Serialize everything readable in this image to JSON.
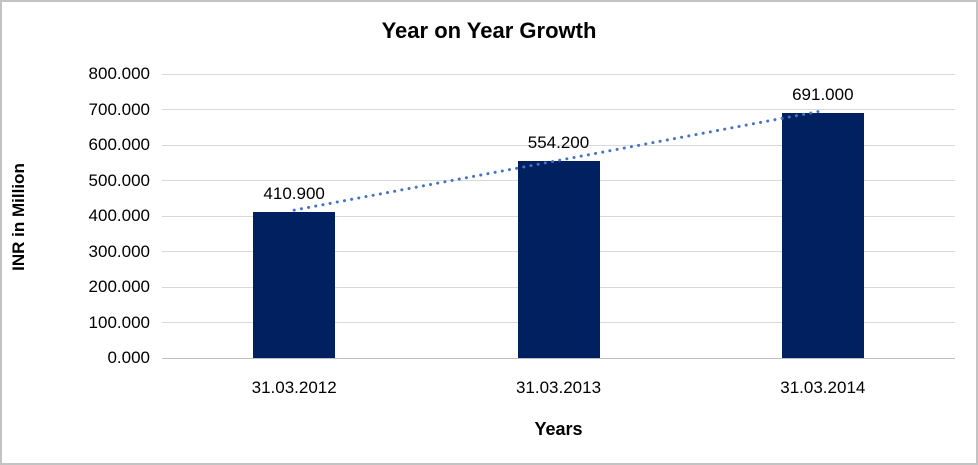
{
  "chart_data": {
    "type": "bar",
    "title": "Year on Year Growth",
    "xlabel": "Years",
    "ylabel": "INR in Million",
    "categories": [
      "31.03.2012",
      "31.03.2013",
      "31.03.2014"
    ],
    "values": [
      410.9,
      554.2,
      691.0
    ],
    "value_labels": [
      "410.900",
      "554.200",
      "691.000"
    ],
    "ylim": [
      0,
      800
    ],
    "ytick_step": 100,
    "ytick_labels": [
      "0.000",
      "100.000",
      "200.000",
      "300.000",
      "400.000",
      "500.000",
      "600.000",
      "700.000",
      "800.000"
    ],
    "grid": true,
    "legend": "none",
    "bar_color": "#002060",
    "trendline_color": "#4472c4",
    "gridline_color": "#d9d9d9",
    "axis_line_color": "#bfbfbf",
    "text_color": "#000000",
    "border_color": "#c3c3c3"
  }
}
